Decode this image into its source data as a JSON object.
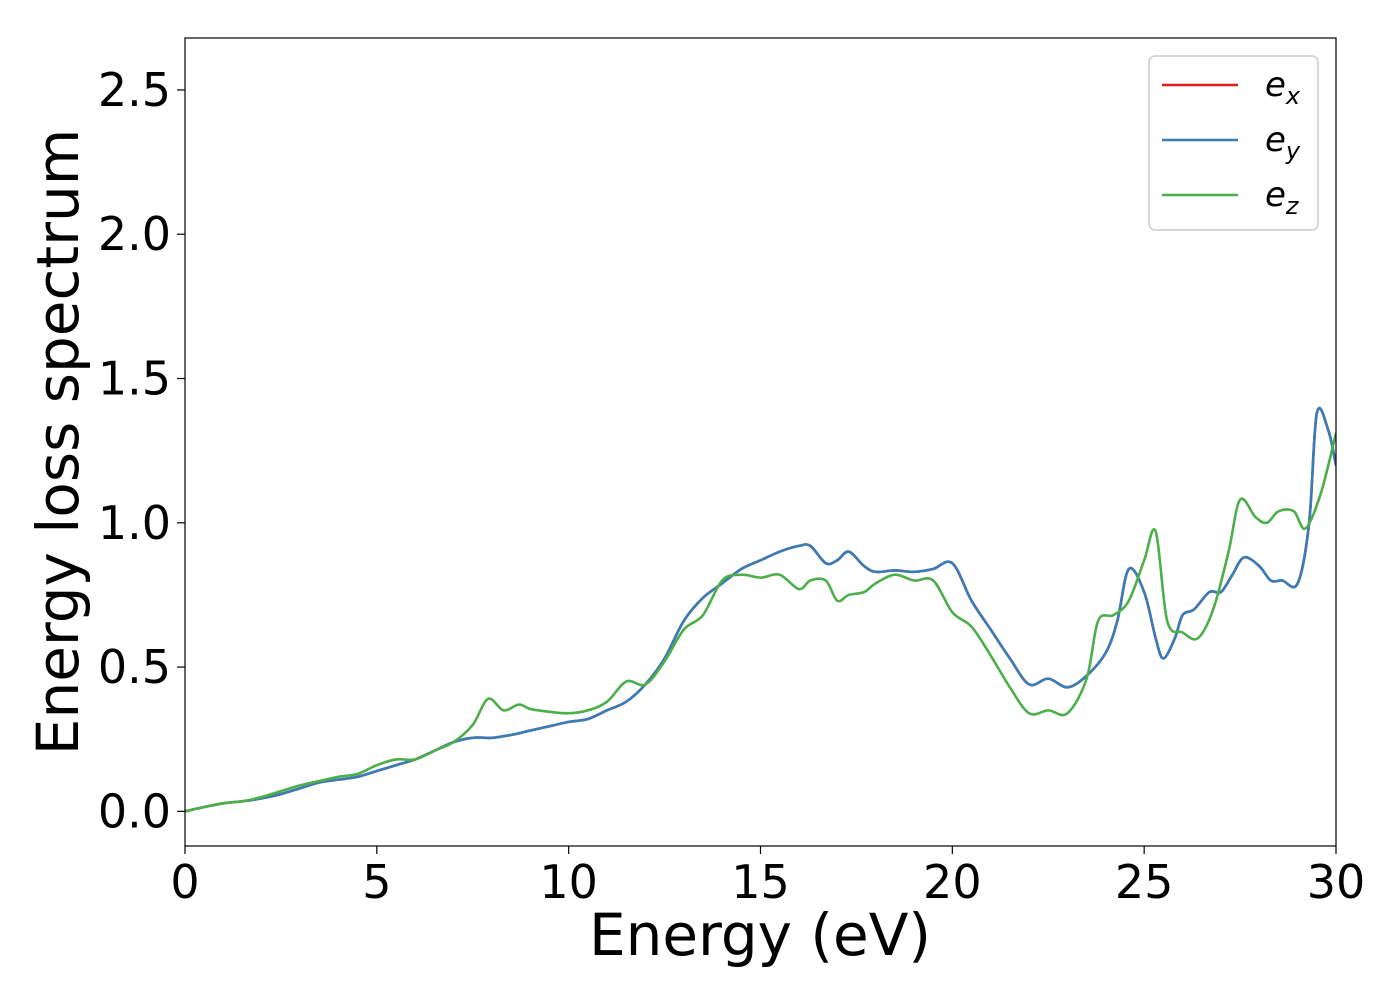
{
  "chart_data": {
    "type": "line",
    "title": "",
    "xlabel": "Energy (eV)",
    "ylabel": "Energy loss spectrum",
    "xlim": [
      0,
      30
    ],
    "ylim": [
      -0.12,
      2.68
    ],
    "xticks": [
      0,
      5,
      10,
      15,
      20,
      25,
      30
    ],
    "xtick_labels": [
      "0",
      "5",
      "10",
      "15",
      "20",
      "25",
      "30"
    ],
    "yticks": [
      0.0,
      0.5,
      1.0,
      1.5,
      2.0,
      2.5
    ],
    "ytick_labels": [
      "0.0",
      "0.5",
      "1.0",
      "1.5",
      "2.0",
      "2.5"
    ],
    "grid": false,
    "legend_position": "top-right",
    "series": [
      {
        "name": "e_x",
        "legend_base": "e",
        "legend_sub": "x",
        "color": "#e41a1c",
        "x": [
          0,
          0.5,
          1,
          1.5,
          2,
          2.5,
          3,
          3.5,
          4,
          4.5,
          5,
          5.5,
          6,
          6.5,
          7,
          7.5,
          8,
          8.5,
          9,
          9.5,
          10,
          10.5,
          11,
          11.5,
          12,
          12.5,
          13,
          13.5,
          14,
          14.5,
          15,
          15.5,
          16,
          16.3,
          16.7,
          17,
          17.3,
          17.7,
          18,
          18.5,
          19,
          19.5,
          20,
          20.5,
          21,
          21.5,
          22,
          22.5,
          23,
          23.5,
          24,
          24.3,
          24.6,
          25,
          25.3,
          25.5,
          25.8,
          26,
          26.3,
          26.7,
          27,
          27.3,
          27.6,
          28,
          28.3,
          28.6,
          29,
          29.3,
          29.5,
          29.8,
          30
        ],
        "y": [
          0.0,
          0.015,
          0.028,
          0.035,
          0.045,
          0.06,
          0.08,
          0.1,
          0.11,
          0.12,
          0.14,
          0.16,
          0.18,
          0.21,
          0.24,
          0.255,
          0.255,
          0.265,
          0.28,
          0.295,
          0.31,
          0.32,
          0.35,
          0.38,
          0.44,
          0.53,
          0.66,
          0.74,
          0.79,
          0.84,
          0.87,
          0.9,
          0.92,
          0.92,
          0.86,
          0.87,
          0.9,
          0.85,
          0.83,
          0.835,
          0.83,
          0.84,
          0.86,
          0.73,
          0.63,
          0.53,
          0.44,
          0.46,
          0.43,
          0.47,
          0.55,
          0.66,
          0.84,
          0.76,
          0.6,
          0.53,
          0.6,
          0.68,
          0.7,
          0.76,
          0.76,
          0.82,
          0.88,
          0.85,
          0.8,
          0.8,
          0.79,
          1.0,
          1.38,
          1.32,
          1.2
        ]
      },
      {
        "name": "e_y",
        "legend_base": "e",
        "legend_sub": "y",
        "color": "#377eb8",
        "x": [
          0,
          0.5,
          1,
          1.5,
          2,
          2.5,
          3,
          3.5,
          4,
          4.5,
          5,
          5.5,
          6,
          6.5,
          7,
          7.5,
          8,
          8.5,
          9,
          9.5,
          10,
          10.5,
          11,
          11.5,
          12,
          12.5,
          13,
          13.5,
          14,
          14.5,
          15,
          15.5,
          16,
          16.3,
          16.7,
          17,
          17.3,
          17.7,
          18,
          18.5,
          19,
          19.5,
          20,
          20.5,
          21,
          21.5,
          22,
          22.5,
          23,
          23.5,
          24,
          24.3,
          24.6,
          25,
          25.3,
          25.5,
          25.8,
          26,
          26.3,
          26.7,
          27,
          27.3,
          27.6,
          28,
          28.3,
          28.6,
          29,
          29.3,
          29.5,
          29.8,
          30
        ],
        "y": [
          0.0,
          0.015,
          0.028,
          0.035,
          0.045,
          0.06,
          0.08,
          0.1,
          0.11,
          0.12,
          0.14,
          0.16,
          0.18,
          0.21,
          0.24,
          0.255,
          0.255,
          0.265,
          0.28,
          0.295,
          0.31,
          0.32,
          0.35,
          0.38,
          0.44,
          0.53,
          0.66,
          0.74,
          0.79,
          0.84,
          0.87,
          0.9,
          0.92,
          0.92,
          0.86,
          0.87,
          0.9,
          0.85,
          0.83,
          0.835,
          0.83,
          0.84,
          0.86,
          0.73,
          0.63,
          0.53,
          0.44,
          0.46,
          0.43,
          0.47,
          0.55,
          0.66,
          0.84,
          0.76,
          0.6,
          0.53,
          0.6,
          0.68,
          0.7,
          0.76,
          0.76,
          0.82,
          0.88,
          0.85,
          0.8,
          0.8,
          0.79,
          1.0,
          1.38,
          1.32,
          1.2
        ]
      },
      {
        "name": "e_z",
        "legend_base": "e",
        "legend_sub": "z",
        "color": "#4daf4a",
        "x": [
          0,
          0.5,
          1,
          1.5,
          2,
          2.5,
          3,
          3.5,
          4,
          4.5,
          5,
          5.5,
          6,
          6.5,
          7,
          7.5,
          7.9,
          8.3,
          8.7,
          9,
          9.5,
          10,
          10.5,
          11,
          11.5,
          12,
          12.5,
          13,
          13.5,
          14,
          14.5,
          15,
          15.5,
          16,
          16.3,
          16.7,
          17,
          17.3,
          17.7,
          18,
          18.5,
          19,
          19.5,
          20,
          20.5,
          21,
          21.5,
          22,
          22.5,
          23,
          23.5,
          23.8,
          24.2,
          24.6,
          25,
          25.3,
          25.6,
          26,
          26.4,
          26.8,
          27.2,
          27.5,
          27.9,
          28.2,
          28.5,
          28.9,
          29.2,
          29.6,
          30
        ],
        "y": [
          0.0,
          0.015,
          0.028,
          0.035,
          0.05,
          0.07,
          0.09,
          0.105,
          0.12,
          0.13,
          0.16,
          0.18,
          0.18,
          0.21,
          0.24,
          0.3,
          0.39,
          0.35,
          0.37,
          0.355,
          0.345,
          0.34,
          0.35,
          0.38,
          0.45,
          0.44,
          0.52,
          0.63,
          0.68,
          0.8,
          0.82,
          0.81,
          0.82,
          0.77,
          0.8,
          0.8,
          0.73,
          0.75,
          0.76,
          0.79,
          0.82,
          0.8,
          0.8,
          0.69,
          0.64,
          0.54,
          0.43,
          0.34,
          0.35,
          0.34,
          0.46,
          0.66,
          0.68,
          0.73,
          0.87,
          0.97,
          0.66,
          0.62,
          0.6,
          0.7,
          0.9,
          1.08,
          1.02,
          1.0,
          1.04,
          1.04,
          0.98,
          1.1,
          1.31
        ]
      }
    ]
  }
}
